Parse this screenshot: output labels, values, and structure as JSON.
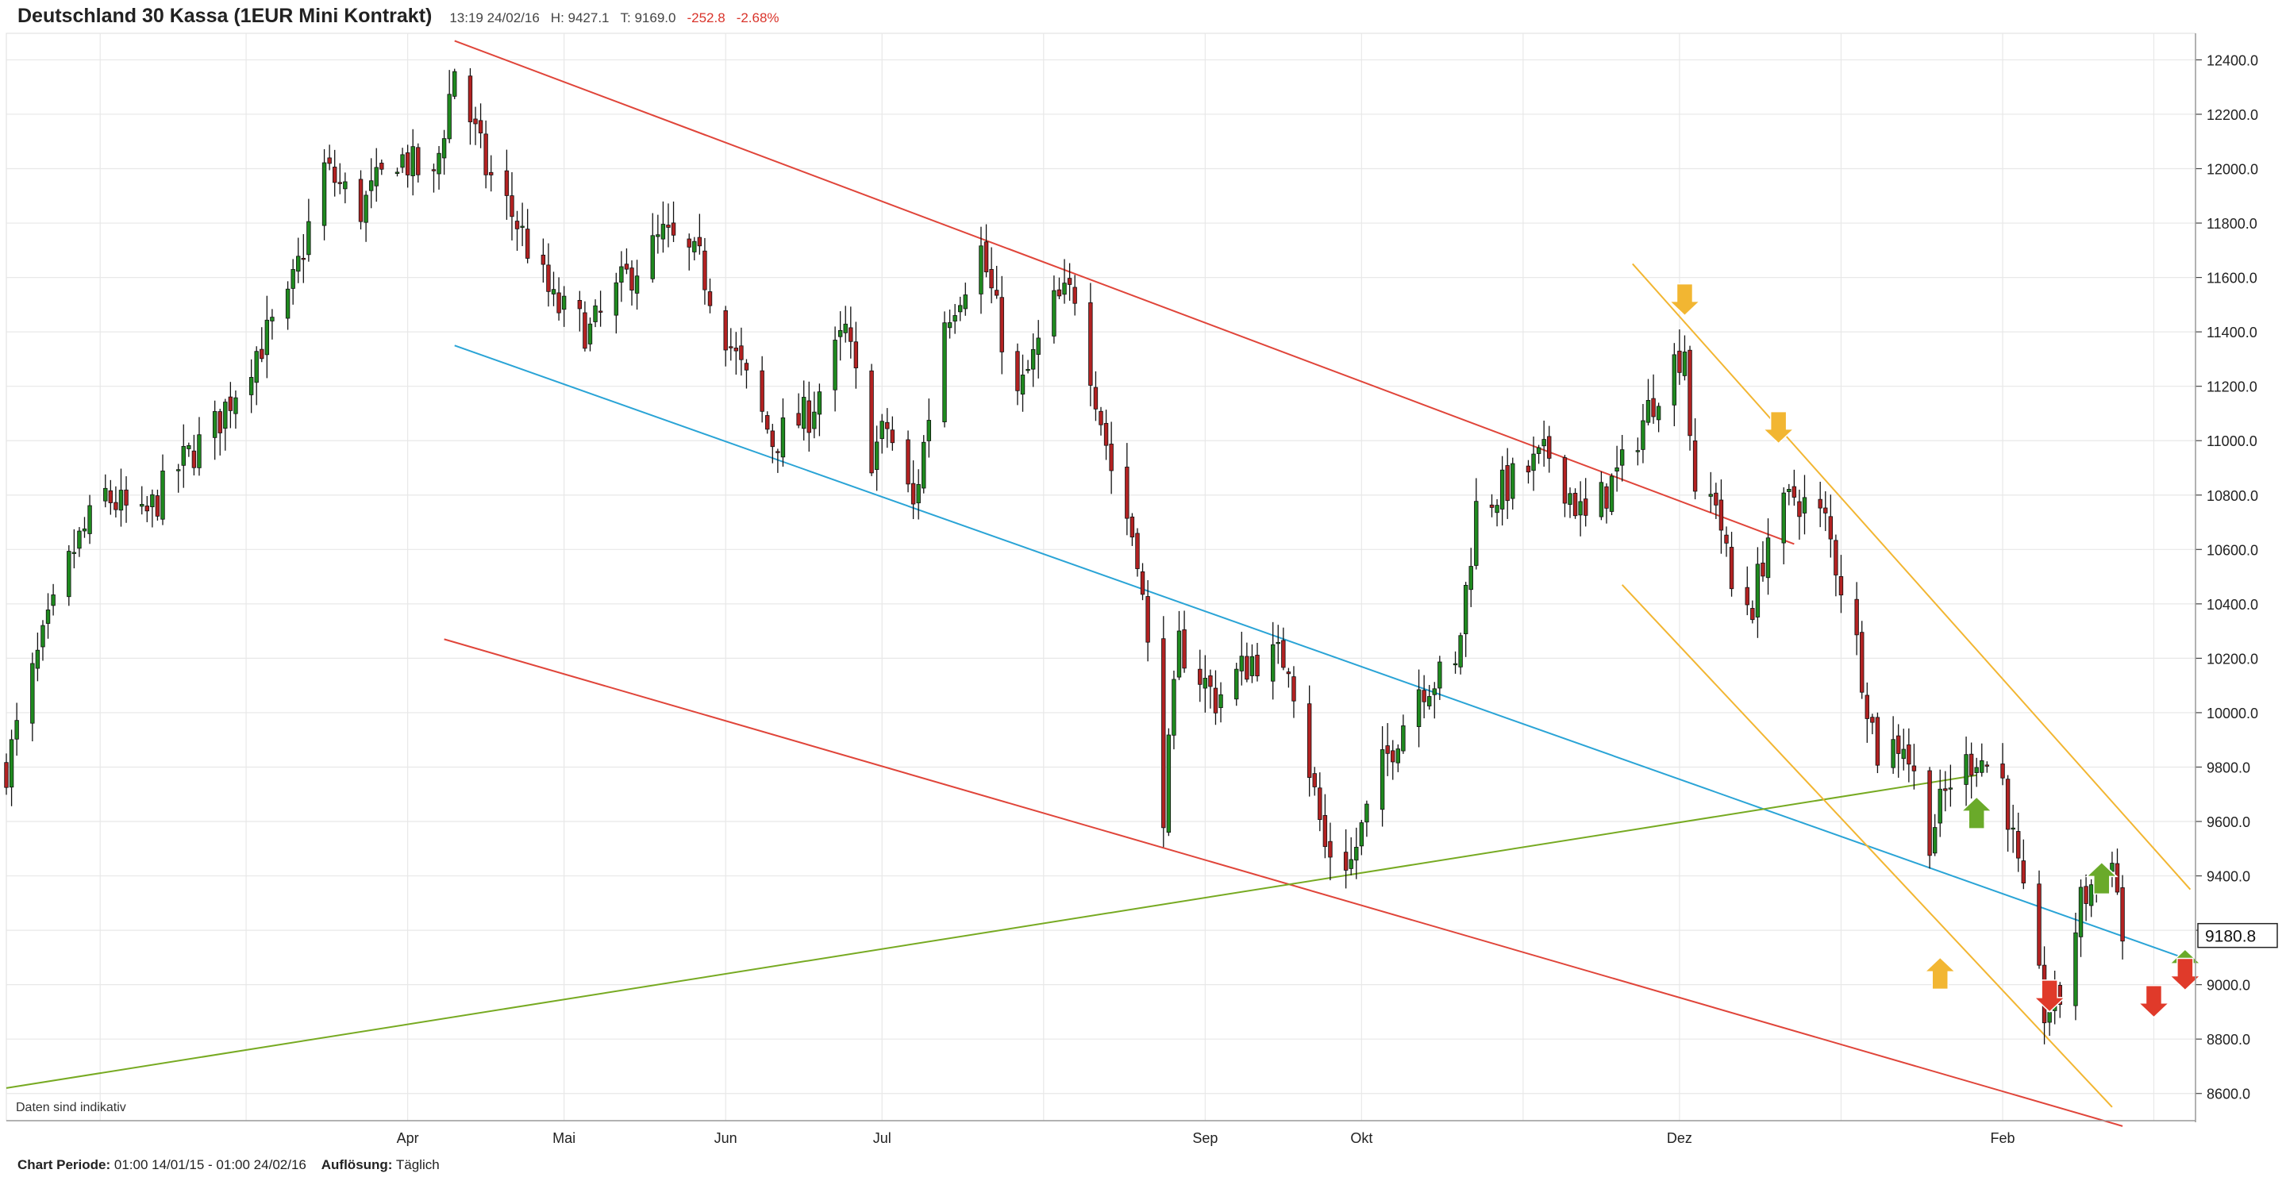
{
  "header": {
    "title": "Deutschland 30 Kassa (1EUR Mini Kontrakt)",
    "time": "13:19 24/02/16",
    "high": "H: 9427.1",
    "last": "T: 9169.0",
    "change": "-252.8",
    "change_pct": "-2.68%"
  },
  "note": "Daten sind indikativ",
  "footer": {
    "period_label": "Chart Periode:",
    "period_value": "01:00 14/01/15 - 01:00 24/02/16",
    "resolution_label": "Auflösung:",
    "resolution_value": "Täglich"
  },
  "colors": {
    "up": "#1f8a1f",
    "down": "#b32222",
    "wick": "#111111",
    "grid": "#e8e8e8",
    "red_line": "#e0453a",
    "blue_line": "#2aa4d6",
    "green_line": "#77aa22",
    "orange_line": "#f2b632",
    "arrow_yellow": "#f2b632",
    "arrow_green": "#6aaa2a",
    "arrow_red": "#e03a2a"
  },
  "chart_data": {
    "type": "candlestick",
    "ylim": [
      8500,
      12480
    ],
    "y_ticks": [
      "12400.0",
      "12200.0",
      "12000.0",
      "11800.0",
      "11600.0",
      "11400.0",
      "11200.0",
      "11000.0",
      "10800.0",
      "10600.0",
      "10400.0",
      "10200.0",
      "10000.0",
      "9800.0",
      "9600.0",
      "9400.0",
      "9200.0",
      "9000.0",
      "8800.0",
      "8600.0"
    ],
    "x_ticks": [
      "Apr",
      "Mai",
      "Jun",
      "Jul",
      "Sep",
      "Okt",
      "Dez",
      "Feb"
    ],
    "price_label": "9180.8",
    "anchors": [
      [
        "2015-01-14",
        9800
      ],
      [
        "2015-01-20",
        10200
      ],
      [
        "2015-01-27",
        10600
      ],
      [
        "2015-02-02",
        10800
      ],
      [
        "2015-02-09",
        10700
      ],
      [
        "2015-02-16",
        10900
      ],
      [
        "2015-02-23",
        11050
      ],
      [
        "2015-03-02",
        11300
      ],
      [
        "2015-03-09",
        11500
      ],
      [
        "2015-03-16",
        12000
      ],
      [
        "2015-03-23",
        11850
      ],
      [
        "2015-03-30",
        12050
      ],
      [
        "2015-04-06",
        11950
      ],
      [
        "2015-04-10",
        12370
      ],
      [
        "2015-04-16",
        12000
      ],
      [
        "2015-04-22",
        11800
      ],
      [
        "2015-04-29",
        11500
      ],
      [
        "2015-05-06",
        11400
      ],
      [
        "2015-05-13",
        11600
      ],
      [
        "2015-05-20",
        11750
      ],
      [
        "2015-05-27",
        11650
      ],
      [
        "2015-06-03",
        11300
      ],
      [
        "2015-06-10",
        11000
      ],
      [
        "2015-06-17",
        11100
      ],
      [
        "2015-06-24",
        11400
      ],
      [
        "2015-06-29",
        10950
      ],
      [
        "2015-07-02",
        11050
      ],
      [
        "2015-07-07",
        10750
      ],
      [
        "2015-07-13",
        11450
      ],
      [
        "2015-07-20",
        11700
      ],
      [
        "2015-07-27",
        11150
      ],
      [
        "2015-08-03",
        11500
      ],
      [
        "2015-08-07",
        11550
      ],
      [
        "2015-08-14",
        10900
      ],
      [
        "2015-08-19",
        10600
      ],
      [
        "2015-08-24",
        9650
      ],
      [
        "2015-08-27",
        10250
      ],
      [
        "2015-09-03",
        10050
      ],
      [
        "2015-09-10",
        10200
      ],
      [
        "2015-09-17",
        10200
      ],
      [
        "2015-09-24",
        9500
      ],
      [
        "2015-09-29",
        9450
      ],
      [
        "2015-10-05",
        9800
      ],
      [
        "2015-10-12",
        10100
      ],
      [
        "2015-10-19",
        10150
      ],
      [
        "2015-10-23",
        10750
      ],
      [
        "2015-10-30",
        10850
      ],
      [
        "2015-11-06",
        10950
      ],
      [
        "2015-11-13",
        10700
      ],
      [
        "2015-11-20",
        10900
      ],
      [
        "2015-11-27",
        11200
      ],
      [
        "2015-12-02",
        11350
      ],
      [
        "2015-12-04",
        10750
      ],
      [
        "2015-12-08",
        10800
      ],
      [
        "2015-12-11",
        10450
      ],
      [
        "2015-12-15",
        10400
      ],
      [
        "2015-12-18",
        10650
      ],
      [
        "2015-12-23",
        10800
      ],
      [
        "2015-12-29",
        10700
      ],
      [
        "2016-01-04",
        10250
      ],
      [
        "2016-01-08",
        9850
      ],
      [
        "2016-01-13",
        9900
      ],
      [
        "2016-01-18",
        9550
      ],
      [
        "2016-01-22",
        9750
      ],
      [
        "2016-01-27",
        9850
      ],
      [
        "2016-02-01",
        9750
      ],
      [
        "2016-02-05",
        9300
      ],
      [
        "2016-02-09",
        8900
      ],
      [
        "2016-02-12",
        8950
      ],
      [
        "2016-02-16",
        9300
      ],
      [
        "2016-02-19",
        9400
      ],
      [
        "2016-02-22",
        9500
      ],
      [
        "2016-02-24",
        9170
      ]
    ],
    "trend_lines": [
      {
        "color": "red_line",
        "from": [
          "2015-04-10",
          12470
        ],
        "to": [
          "2015-12-23",
          10620
        ]
      },
      {
        "color": "red_line",
        "from": [
          "2015-04-08",
          10270
        ],
        "to": [
          "2016-02-24",
          8480
        ]
      },
      {
        "color": "blue_line",
        "from": [
          "2015-04-10",
          11350
        ],
        "to": [
          "2016-03-08",
          9090
        ]
      },
      {
        "color": "green_line",
        "from": [
          "2015-01-14",
          8620
        ],
        "to": [
          "2016-01-27",
          9770
        ]
      },
      {
        "color": "orange_line",
        "from": [
          "2015-11-22",
          11650
        ],
        "to": [
          "2016-03-08",
          9350
        ]
      },
      {
        "color": "orange_line",
        "from": [
          "2015-11-20",
          10470
        ],
        "to": [
          "2016-02-22",
          8550
        ]
      }
    ],
    "signals": [
      {
        "color": "arrow_yellow",
        "dir": "down",
        "date": "2015-12-02",
        "value": 11460
      },
      {
        "color": "arrow_yellow",
        "dir": "down",
        "date": "2015-12-20",
        "value": 10990
      },
      {
        "color": "arrow_yellow",
        "dir": "up",
        "date": "2016-01-20",
        "value": 9100
      },
      {
        "color": "arrow_green",
        "dir": "up",
        "date": "2016-01-27",
        "value": 9690
      },
      {
        "color": "arrow_green",
        "dir": "up",
        "date": "2016-02-20",
        "value": 9450
      },
      {
        "color": "arrow_green",
        "dir": "up",
        "date": "2016-03-07",
        "value": 9130
      },
      {
        "color": "arrow_red",
        "dir": "down",
        "date": "2016-02-10",
        "value": 8900
      },
      {
        "color": "arrow_red",
        "dir": "down",
        "date": "2016-03-01",
        "value": 8880
      },
      {
        "color": "arrow_red",
        "dir": "down",
        "date": "2016-03-07",
        "value": 8980
      }
    ]
  }
}
